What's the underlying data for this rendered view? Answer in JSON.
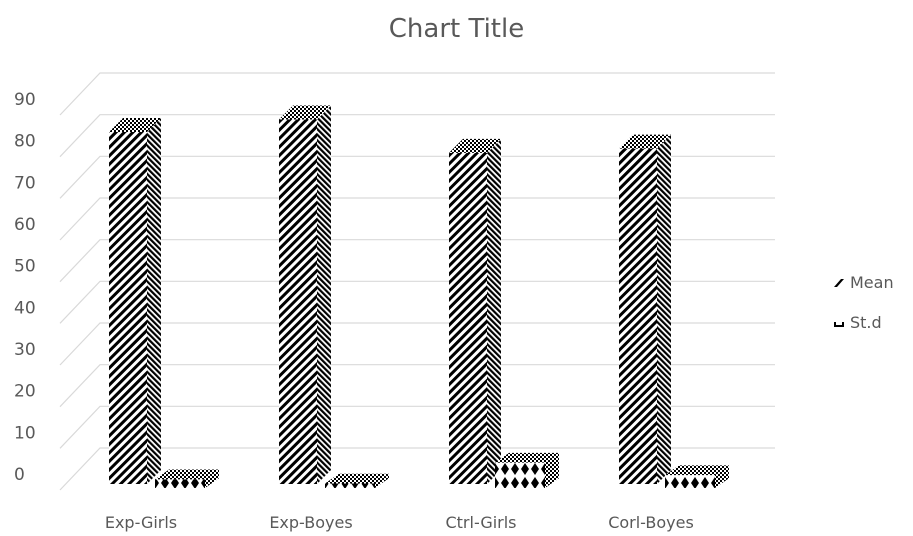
{
  "chart_data": {
    "type": "bar",
    "title": "Chart Title",
    "categories": [
      "Exp-Girls",
      "Exp-Boyes",
      "Ctrl-Girls",
      "Corl-Boyes"
    ],
    "series": [
      {
        "name": "Mean",
        "values": [
          84,
          87,
          79,
          80
        ],
        "pattern": "diagonal-stripes"
      },
      {
        "name": "St.d",
        "values": [
          4,
          3,
          8,
          5
        ],
        "pattern": "diamonds"
      }
    ],
    "ylim": [
      0,
      90
    ],
    "yticks": [
      0,
      10,
      20,
      30,
      40,
      50,
      60,
      70,
      80,
      90
    ],
    "grid": true,
    "legend_position": "right",
    "three_d": true,
    "colors": {
      "text": "#595959",
      "grid": "#d9d9d9",
      "mark": "#000000"
    }
  }
}
